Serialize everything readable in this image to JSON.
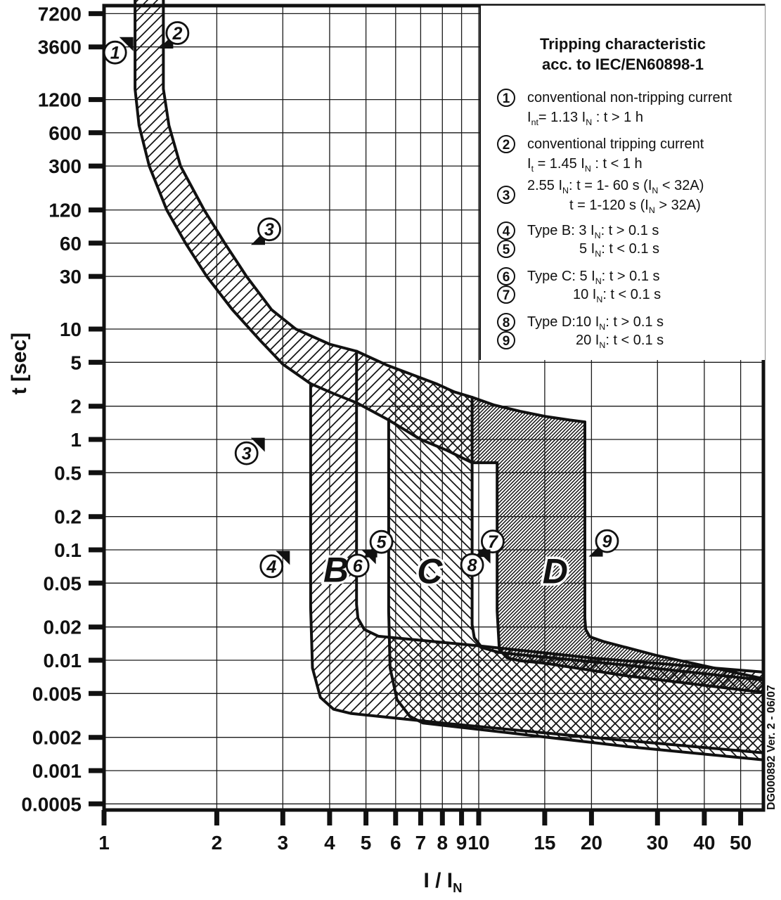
{
  "footnote": "DG000892 Ver. 2 - 06/07",
  "legend": {
    "title1": "Tripping characteristic",
    "title2": "acc. to IEC/EN60898-1",
    "items": [
      {
        "num": "1",
        "l1": [
          [
            "conventional non-tripping current",
            0
          ]
        ],
        "l2": [
          [
            "I",
            0
          ],
          [
            "nt",
            1
          ],
          [
            "= 1.13 I",
            0
          ],
          [
            "N",
            1
          ],
          [
            " : t > 1 h",
            0
          ]
        ]
      },
      {
        "num": "2",
        "l1": [
          [
            "conventional tripping current",
            0
          ]
        ],
        "l2": [
          [
            "I",
            0
          ],
          [
            "t",
            1
          ],
          [
            " = 1.45 I",
            0
          ],
          [
            "N",
            1
          ],
          [
            " : t < 1 h",
            0
          ]
        ]
      },
      {
        "num": "3",
        "l1": [
          [
            "2.55 I",
            0
          ],
          [
            "N",
            1
          ],
          [
            ": t = 1- 60 s (I",
            0
          ],
          [
            "N",
            1
          ],
          [
            " < 32A)",
            0
          ]
        ],
        "l2": [
          [
            "t = 1-120 s (I",
            0
          ],
          [
            "N",
            1
          ],
          [
            " > 32A)",
            0
          ]
        ]
      },
      {
        "num": "4",
        "l1": [
          [
            "Type B: 3 I",
            0
          ],
          [
            "N",
            1
          ],
          [
            ": t > 0.1 s",
            0
          ]
        ]
      },
      {
        "num": "5",
        "l1": [
          [
            "5 I",
            0
          ],
          [
            "N",
            1
          ],
          [
            ": t < 0.1 s",
            0
          ]
        ]
      },
      {
        "num": "6",
        "l1": [
          [
            "Type C: 5 I",
            0
          ],
          [
            "N",
            1
          ],
          [
            ": t > 0.1 s",
            0
          ]
        ]
      },
      {
        "num": "7",
        "l1": [
          [
            "10 I",
            0
          ],
          [
            "N",
            1
          ],
          [
            ": t < 0.1 s",
            0
          ]
        ]
      },
      {
        "num": "8",
        "l1": [
          [
            "Type D:10 I",
            0
          ],
          [
            "N",
            1
          ],
          [
            ": t > 0.1 s",
            0
          ]
        ]
      },
      {
        "num": "9",
        "l1": [
          [
            "20 I",
            0
          ],
          [
            "N",
            1
          ],
          [
            ": t < 0.1 s",
            0
          ]
        ]
      }
    ]
  },
  "chart_data": {
    "type": "area",
    "title": "Tripping characteristic acc. to IEC/EN60898-1",
    "x_axis": {
      "label_rich": [
        [
          "I / I",
          0
        ],
        [
          "N",
          1
        ]
      ],
      "scale": "log",
      "range": [
        1,
        57.6
      ],
      "ticks": [
        1,
        2,
        3,
        4,
        5,
        6,
        7,
        8,
        9,
        10,
        15,
        20,
        30,
        40,
        50
      ]
    },
    "y_axis": {
      "label": "t [sec]",
      "scale": "log",
      "range": [
        0.00044,
        8500
      ],
      "ticks": [
        7200,
        3600,
        1200,
        600,
        300,
        120,
        60,
        30,
        10,
        5,
        2,
        1,
        0.5,
        0.2,
        0.1,
        0.05,
        0.02,
        0.01,
        0.005,
        0.002,
        0.001,
        0.0005
      ]
    },
    "grid": true,
    "curves": {
      "thermal_lower": [
        [
          1.21,
          10000
        ],
        [
          1.21,
          1500
        ],
        [
          1.24,
          700
        ],
        [
          1.32,
          300
        ],
        [
          1.47,
          120
        ],
        [
          1.65,
          60
        ],
        [
          1.88,
          30
        ],
        [
          2.2,
          15
        ],
        [
          2.6,
          8
        ],
        [
          3.0,
          4.8
        ],
        [
          3.56,
          3.2
        ],
        [
          4.1,
          2.6
        ],
        [
          4.72,
          2.15
        ],
        [
          5.75,
          1.5
        ],
        [
          7.0,
          1.0
        ],
        [
          8.2,
          0.8
        ],
        [
          9.6,
          0.615
        ]
      ],
      "thermal_upper": [
        [
          1.44,
          10000
        ],
        [
          1.44,
          1500
        ],
        [
          1.49,
          700
        ],
        [
          1.6,
          300
        ],
        [
          1.85,
          120
        ],
        [
          2.1,
          60
        ],
        [
          2.4,
          30
        ],
        [
          2.8,
          15
        ],
        [
          3.25,
          10
        ],
        [
          4.0,
          7.3
        ],
        [
          4.72,
          6.3
        ],
        [
          5.7,
          4.7
        ],
        [
          6.6,
          3.9
        ],
        [
          7.7,
          3.2
        ],
        [
          8.6,
          2.7
        ],
        [
          9.6,
          2.41
        ],
        [
          11.0,
          2.05
        ],
        [
          12.9,
          1.8
        ],
        [
          15.0,
          1.62
        ],
        [
          17.5,
          1.5
        ],
        [
          19.2,
          1.44
        ]
      ]
    },
    "bands": {
      "thermal": {
        "fill": "hatch-fwd",
        "poly": [
          [
            1.21,
            10000
          ],
          [
            1.21,
            1500
          ],
          [
            1.24,
            700
          ],
          [
            1.32,
            300
          ],
          [
            1.47,
            120
          ],
          [
            1.65,
            60
          ],
          [
            1.88,
            30
          ],
          [
            2.2,
            15
          ],
          [
            2.6,
            8
          ],
          [
            3.0,
            4.8
          ],
          [
            3.56,
            3.2
          ],
          [
            4.1,
            2.6
          ],
          [
            4.72,
            2.15
          ],
          [
            5.75,
            1.5
          ],
          [
            7.0,
            1.0
          ],
          [
            8.2,
            0.8
          ],
          [
            9.6,
            0.615
          ],
          [
            9.6,
            2.41
          ],
          [
            8.6,
            2.7
          ],
          [
            7.7,
            3.2
          ],
          [
            6.6,
            3.9
          ],
          [
            5.7,
            4.7
          ],
          [
            4.72,
            6.3
          ],
          [
            4.0,
            7.3
          ],
          [
            3.25,
            10
          ],
          [
            2.8,
            15
          ],
          [
            2.4,
            30
          ],
          [
            2.1,
            60
          ],
          [
            1.85,
            120
          ],
          [
            1.6,
            300
          ],
          [
            1.49,
            700
          ],
          [
            1.44,
            1500
          ],
          [
            1.44,
            10000
          ]
        ]
      },
      "B": {
        "type_label": "B",
        "range_x": [
          3.56,
          4.72
        ],
        "fill": "hatch-fwd",
        "poly": [
          [
            3.56,
            3.2
          ],
          [
            3.56,
            0.03
          ],
          [
            3.6,
            0.0085
          ],
          [
            3.78,
            0.0046
          ],
          [
            4.1,
            0.0036
          ],
          [
            4.55,
            0.0033
          ],
          [
            8,
            0.0027
          ],
          [
            20,
            0.002
          ],
          [
            57.6,
            0.00145
          ],
          [
            57.6,
            0.0078
          ],
          [
            20,
            0.0105
          ],
          [
            10,
            0.0135
          ],
          [
            5.4,
            0.0165
          ],
          [
            4.95,
            0.019
          ],
          [
            4.76,
            0.024
          ],
          [
            4.72,
            0.032
          ],
          [
            4.72,
            2.15
          ],
          [
            4.1,
            2.6
          ]
        ],
        "strokes": [
          [
            [
              3.56,
              3.2
            ],
            [
              3.56,
              0.03
            ],
            [
              3.6,
              0.0085
            ],
            [
              3.78,
              0.0046
            ],
            [
              4.1,
              0.0036
            ],
            [
              4.55,
              0.0033
            ],
            [
              8,
              0.0027
            ],
            [
              20,
              0.002
            ],
            [
              57.6,
              0.00145
            ]
          ],
          [
            [
              4.72,
              6.3
            ],
            [
              4.72,
              0.032
            ],
            [
              4.76,
              0.024
            ],
            [
              4.95,
              0.019
            ],
            [
              5.4,
              0.0165
            ],
            [
              10,
              0.0135
            ],
            [
              20,
              0.0105
            ],
            [
              57.6,
              0.0078
            ]
          ]
        ]
      },
      "C": {
        "type_label": "C",
        "range_x": [
          5.75,
          9.6
        ],
        "fill": "hatch-back",
        "poly": [
          [
            5.75,
            4.65
          ],
          [
            5.75,
            0.028
          ],
          [
            5.8,
            0.0085
          ],
          [
            6.05,
            0.0044
          ],
          [
            6.55,
            0.0031
          ],
          [
            7.1,
            0.0027
          ],
          [
            12,
            0.0022
          ],
          [
            25,
            0.00165
          ],
          [
            57.6,
            0.00125
          ],
          [
            57.6,
            0.0066
          ],
          [
            25,
            0.009
          ],
          [
            12,
            0.0115
          ],
          [
            11.3,
            0.0118
          ],
          [
            10.2,
            0.013
          ],
          [
            9.73,
            0.016
          ],
          [
            9.6,
            0.021
          ],
          [
            9.6,
            2.41
          ],
          [
            8.6,
            2.7
          ],
          [
            7.7,
            3.2
          ],
          [
            6.6,
            3.9
          ]
        ],
        "strokes": [
          [
            [
              5.75,
              1.5
            ],
            [
              5.75,
              0.028
            ],
            [
              5.8,
              0.0085
            ],
            [
              6.05,
              0.0044
            ],
            [
              6.55,
              0.0031
            ],
            [
              7.1,
              0.0027
            ],
            [
              12,
              0.0022
            ],
            [
              25,
              0.00165
            ],
            [
              57.6,
              0.00125
            ]
          ],
          [
            [
              9.6,
              2.41
            ],
            [
              9.6,
              0.021
            ],
            [
              9.73,
              0.016
            ],
            [
              10.2,
              0.013
            ],
            [
              11.3,
              0.0118
            ],
            [
              12,
              0.0115
            ],
            [
              25,
              0.009
            ],
            [
              57.6,
              0.0066
            ]
          ]
        ]
      },
      "D": {
        "type_label": "D",
        "range_x": [
          11.2,
          19.2
        ],
        "fill": "hatch-dense",
        "poly": [
          [
            9.6,
            2.41
          ],
          [
            9.6,
            0.615
          ],
          [
            11.2,
            0.615
          ],
          [
            11.2,
            0.028
          ],
          [
            11.35,
            0.0125
          ],
          [
            11.9,
            0.0105
          ],
          [
            12.9,
            0.0099
          ],
          [
            15,
            0.0094
          ],
          [
            25,
            0.0072
          ],
          [
            57.6,
            0.0051
          ],
          [
            57.6,
            0.0068
          ],
          [
            30,
            0.011
          ],
          [
            21.5,
            0.0148
          ],
          [
            19.8,
            0.0163
          ],
          [
            19.3,
            0.019
          ],
          [
            19.2,
            0.024
          ],
          [
            19.2,
            1.44
          ],
          [
            17.5,
            1.5
          ],
          [
            15,
            1.62
          ],
          [
            12.9,
            1.8
          ],
          [
            11.0,
            2.05
          ]
        ],
        "strokes": [
          [
            [
              9.6,
              0.615
            ],
            [
              11.2,
              0.615
            ],
            [
              11.2,
              0.028
            ],
            [
              11.35,
              0.0125
            ],
            [
              11.9,
              0.0105
            ],
            [
              12.9,
              0.0099
            ],
            [
              15,
              0.0094
            ],
            [
              25,
              0.0072
            ],
            [
              57.6,
              0.0051
            ]
          ],
          [
            [
              19.2,
              1.44
            ],
            [
              19.2,
              0.024
            ],
            [
              19.3,
              0.019
            ],
            [
              19.8,
              0.0163
            ],
            [
              21.5,
              0.0148
            ],
            [
              30,
              0.011
            ],
            [
              57.6,
              0.0068
            ]
          ]
        ]
      }
    },
    "region_labels": [
      {
        "text": "B",
        "x": 4.16,
        "t": 0.067
      },
      {
        "text": "C",
        "x": 7.4,
        "t": 0.065
      },
      {
        "text": "D",
        "x": 16.0,
        "t": 0.065
      }
    ],
    "annotations": [
      {
        "n": "1",
        "x": 1.07,
        "t": 3200,
        "flag": "tr"
      },
      {
        "n": "2",
        "x": 1.57,
        "t": 4800,
        "flag": "bl"
      },
      {
        "n": "3",
        "x": 2.76,
        "t": 80,
        "flag": "bl"
      },
      {
        "n": "3",
        "x": 2.4,
        "t": 0.75,
        "flag": "tr"
      },
      {
        "n": "4",
        "x": 2.8,
        "t": 0.071,
        "flag": "tr"
      },
      {
        "n": "5",
        "x": 5.5,
        "t": 0.118,
        "flag": "bl"
      },
      {
        "n": "6",
        "x": 4.75,
        "t": 0.072,
        "flag": "tr"
      },
      {
        "n": "7",
        "x": 10.9,
        "t": 0.119,
        "flag": "bl"
      },
      {
        "n": "8",
        "x": 9.6,
        "t": 0.073,
        "flag": "tr"
      },
      {
        "n": "9",
        "x": 22.0,
        "t": 0.12,
        "flag": "bl"
      }
    ]
  }
}
